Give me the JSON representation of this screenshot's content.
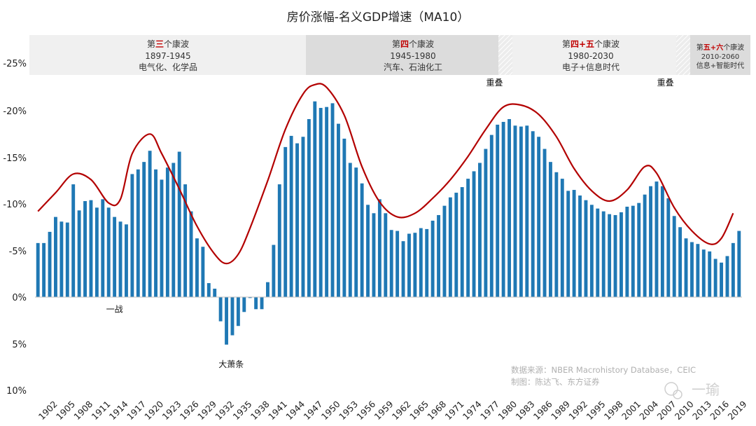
{
  "chart_data": {
    "type": "bar",
    "title": "房价涨幅-名义GDP增速（MA10）",
    "ylim": [
      -28,
      10
    ],
    "ytick_labels": [
      "-25%",
      "-20%",
      "-15%",
      "-10%",
      "-5%",
      "0%",
      "5%",
      "10%"
    ],
    "ytick_values": [
      -25,
      -20,
      -15,
      -10,
      -5,
      0,
      5,
      10
    ],
    "x_tick_labels": [
      "1902",
      "1905",
      "1908",
      "1911",
      "1914",
      "1917",
      "1920",
      "1923",
      "1926",
      "1929",
      "1932",
      "1935",
      "1938",
      "1941",
      "1944",
      "1947",
      "1950",
      "1953",
      "1956",
      "1959",
      "1962",
      "1965",
      "1968",
      "1971",
      "1974",
      "1977",
      "1980",
      "1983",
      "1986",
      "1989",
      "1992",
      "1995",
      "1998",
      "2001",
      "2004",
      "2007",
      "2010",
      "2013",
      "2016",
      "2019"
    ],
    "series": [
      {
        "name": "房价涨幅-名义GDP增速（MA10）",
        "color": "#1f78b4",
        "x_start": 1902,
        "values": [
          -5.8,
          -5.8,
          -7.0,
          -8.6,
          -8.1,
          -8.0,
          -12.1,
          -9.3,
          -10.3,
          -10.4,
          -9.6,
          -10.5,
          -9.6,
          -8.6,
          -8.1,
          -7.8,
          -13.2,
          -13.7,
          -14.5,
          -15.7,
          -13.7,
          -12.6,
          -13.9,
          -14.4,
          -15.6,
          -12.1,
          -9.2,
          -6.3,
          -5.4,
          -1.5,
          -0.9,
          2.6,
          5.1,
          4.1,
          3.1,
          1.6,
          0.1,
          1.3,
          1.3,
          -1.6,
          -5.6,
          -12.1,
          -16.1,
          -17.3,
          -16.5,
          -17.2,
          -19.1,
          -21.0,
          -20.3,
          -20.4,
          -20.8,
          -18.6,
          -17.0,
          -14.4,
          -13.9,
          -12.2,
          -9.9,
          -9.0,
          -10.5,
          -9.0,
          -7.2,
          -7.1,
          -6.0,
          -6.8,
          -6.9,
          -7.4,
          -7.3,
          -8.2,
          -8.8,
          -9.8,
          -10.7,
          -11.2,
          -11.8,
          -12.7,
          -13.5,
          -14.4,
          -15.9,
          -17.4,
          -18.5,
          -18.8,
          -19.1,
          -18.4,
          -18.3,
          -18.4,
          -17.8,
          -17.2,
          -15.9,
          -14.5,
          -13.4,
          -12.7,
          -11.4,
          -11.5,
          -10.9,
          -10.4,
          -9.9,
          -9.5,
          -9.2,
          -8.9,
          -8.8,
          -9.1,
          -9.7,
          -9.8,
          -10.1,
          -11.0,
          -11.9,
          -12.4,
          -11.9,
          -10.6,
          -8.7,
          -7.5,
          -6.3,
          -5.9,
          -5.7,
          -5.1,
          -4.9,
          -4.1,
          -3.7,
          -4.4,
          -5.8,
          -7.1
        ]
      }
    ],
    "trend_line": {
      "name": "趋势线",
      "color": "#b30000",
      "points": [
        [
          1902,
          -9.2
        ],
        [
          1905,
          -11.2
        ],
        [
          1908,
          -13.2
        ],
        [
          1911,
          -12.6
        ],
        [
          1914,
          -10.1
        ],
        [
          1916,
          -10.5
        ],
        [
          1918,
          -15.4
        ],
        [
          1921,
          -17.5
        ],
        [
          1923,
          -15.4
        ],
        [
          1926,
          -11.6
        ],
        [
          1929,
          -7.6
        ],
        [
          1932,
          -4.6
        ],
        [
          1934,
          -3.6
        ],
        [
          1936,
          -4.6
        ],
        [
          1938,
          -7.4
        ],
        [
          1941,
          -12.5
        ],
        [
          1944,
          -18.0
        ],
        [
          1947,
          -21.8
        ],
        [
          1949,
          -22.8
        ],
        [
          1951,
          -22.5
        ],
        [
          1954,
          -19.5
        ],
        [
          1957,
          -14.0
        ],
        [
          1960,
          -10.2
        ],
        [
          1963,
          -8.6
        ],
        [
          1966,
          -9.0
        ],
        [
          1969,
          -10.6
        ],
        [
          1972,
          -12.6
        ],
        [
          1975,
          -15.1
        ],
        [
          1978,
          -18.0
        ],
        [
          1981,
          -20.4
        ],
        [
          1984,
          -20.6
        ],
        [
          1987,
          -19.6
        ],
        [
          1990,
          -17.2
        ],
        [
          1993,
          -13.8
        ],
        [
          1996,
          -11.4
        ],
        [
          1999,
          -10.3
        ],
        [
          2002,
          -11.5
        ],
        [
          2005,
          -14.0
        ],
        [
          2007,
          -13.3
        ],
        [
          2010,
          -9.6
        ],
        [
          2013,
          -7.1
        ],
        [
          2016,
          -5.7
        ],
        [
          2018,
          -6.3
        ],
        [
          2020,
          -9.0
        ]
      ]
    },
    "annotations": [
      {
        "text": "一战",
        "year": 1915,
        "value": 1.3
      },
      {
        "text": "大萧条",
        "year": 1934.8,
        "value": 7.2
      },
      {
        "text": "重叠",
        "year": 1979.5,
        "value": -23.0
      },
      {
        "text": "重叠",
        "year": 2008.5,
        "value": -23.0
      }
    ],
    "waves": [
      {
        "title_parts": [
          "第",
          "三",
          "个康波"
        ],
        "years": "1897-1945",
        "desc": "电气化、化学品"
      },
      {
        "title_parts": [
          "第",
          "四",
          "个康波"
        ],
        "years": "1945-1980",
        "desc": "汽车、石油化工"
      },
      {
        "title_parts": [
          "第",
          "四",
          "+",
          "五",
          "个康波"
        ],
        "years": "1980-2030",
        "desc": "电子+信息时代"
      },
      {
        "title_parts": [
          "第",
          "五",
          "+",
          "六",
          "个康波"
        ],
        "years": "2010-2060",
        "desc": "信息+智能时代"
      }
    ],
    "source_line1": "数据来源：NBER Macrohistory Database，CEIC",
    "source_line2": "制图：陈达飞、东方证券",
    "watermark": "一瑜"
  },
  "colors": {
    "bar": "#1f78b4",
    "line": "#b30000",
    "band_light": "#f0f0f0",
    "band_dark": "#dcdcdc",
    "red_text": "#c00000"
  }
}
